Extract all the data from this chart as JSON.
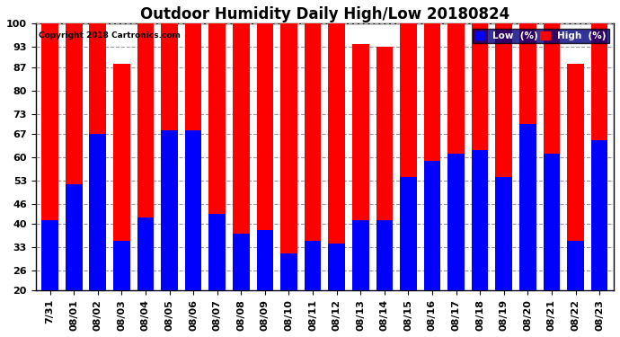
{
  "title": "Outdoor Humidity Daily High/Low 20180824",
  "copyright": "Copyright 2018 Cartronics.com",
  "dates": [
    "7/31",
    "08/01",
    "08/02",
    "08/03",
    "08/04",
    "08/05",
    "08/06",
    "08/07",
    "08/08",
    "08/09",
    "08/10",
    "08/11",
    "08/12",
    "08/13",
    "08/14",
    "08/15",
    "08/16",
    "08/17",
    "08/18",
    "08/19",
    "08/20",
    "08/21",
    "08/22",
    "08/23"
  ],
  "high": [
    100,
    100,
    100,
    88,
    100,
    100,
    100,
    100,
    100,
    100,
    100,
    100,
    100,
    94,
    93,
    100,
    100,
    100,
    100,
    100,
    100,
    100,
    88,
    100
  ],
  "low": [
    41,
    52,
    67,
    35,
    42,
    68,
    68,
    43,
    37,
    38,
    31,
    35,
    34,
    41,
    41,
    54,
    59,
    61,
    62,
    54,
    70,
    61,
    35,
    65
  ],
  "bar_width": 0.7,
  "ylim": [
    20,
    100
  ],
  "yticks": [
    20,
    26,
    33,
    40,
    46,
    53,
    60,
    67,
    73,
    80,
    87,
    93,
    100
  ],
  "high_color": "#ff0000",
  "low_color": "#0000ff",
  "bg_color": "#ffffff",
  "grid_color": "#999999",
  "title_fontsize": 12,
  "tick_fontsize": 8,
  "legend_label_low": "Low  (%)",
  "legend_label_high": "High  (%)"
}
